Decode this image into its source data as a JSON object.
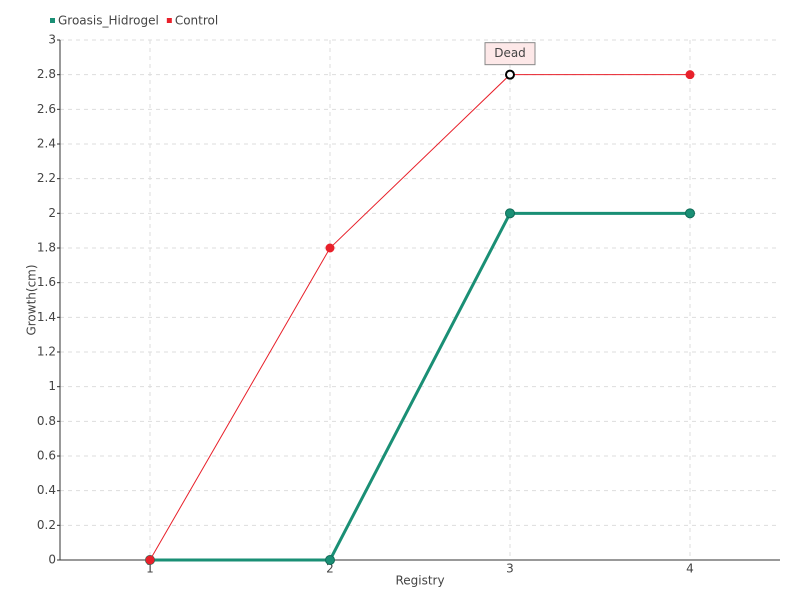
{
  "chart_data": {
    "type": "line",
    "x_label": "Registry",
    "y_label": "Growth(cm)",
    "categories": [
      "1",
      "2",
      "3",
      "4"
    ],
    "series": [
      {
        "name": "Groasis_Hidrogel",
        "color": "#1a8f75",
        "values": [
          0,
          0,
          2,
          2
        ],
        "annotations": [
          null,
          null,
          null,
          null
        ]
      },
      {
        "name": "Control",
        "color": "#e8202a",
        "values": [
          0,
          1.8,
          2.8,
          2.8
        ],
        "annotations": [
          null,
          null,
          "Dead",
          null
        ]
      }
    ],
    "ylim": [
      0,
      3
    ],
    "yticks": [
      0,
      0.2,
      0.4,
      0.6,
      0.8,
      1,
      1.2,
      1.4,
      1.6,
      1.8,
      2,
      2.2,
      2.4,
      2.6,
      2.8,
      3
    ],
    "grid": true,
    "legend": "top-left"
  }
}
